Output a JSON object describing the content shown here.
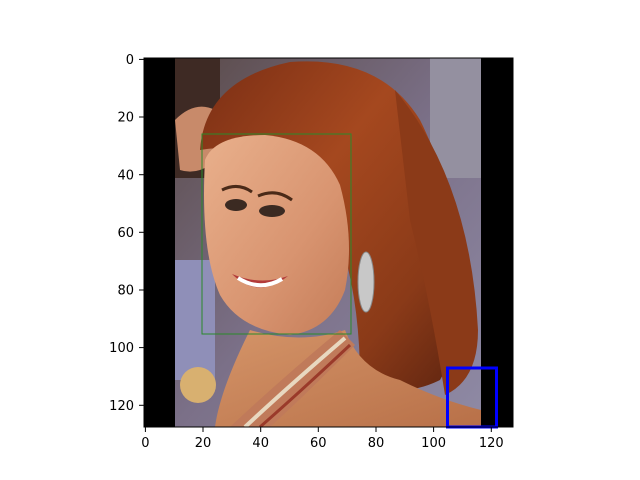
{
  "image": {
    "subject": "photo-woman-red-hair",
    "x_range": [
      0,
      128
    ],
    "y_range": [
      128,
      0
    ]
  },
  "axes": {
    "x_ticks": [
      "0",
      "20",
      "40",
      "60",
      "80",
      "100",
      "120"
    ],
    "y_ticks": [
      "0",
      "20",
      "40",
      "60",
      "80",
      "100",
      "120"
    ]
  },
  "annotations": {
    "face_box": {
      "color": "#2a8a2a"
    },
    "detection_box": {
      "color": "#0000ff"
    }
  }
}
